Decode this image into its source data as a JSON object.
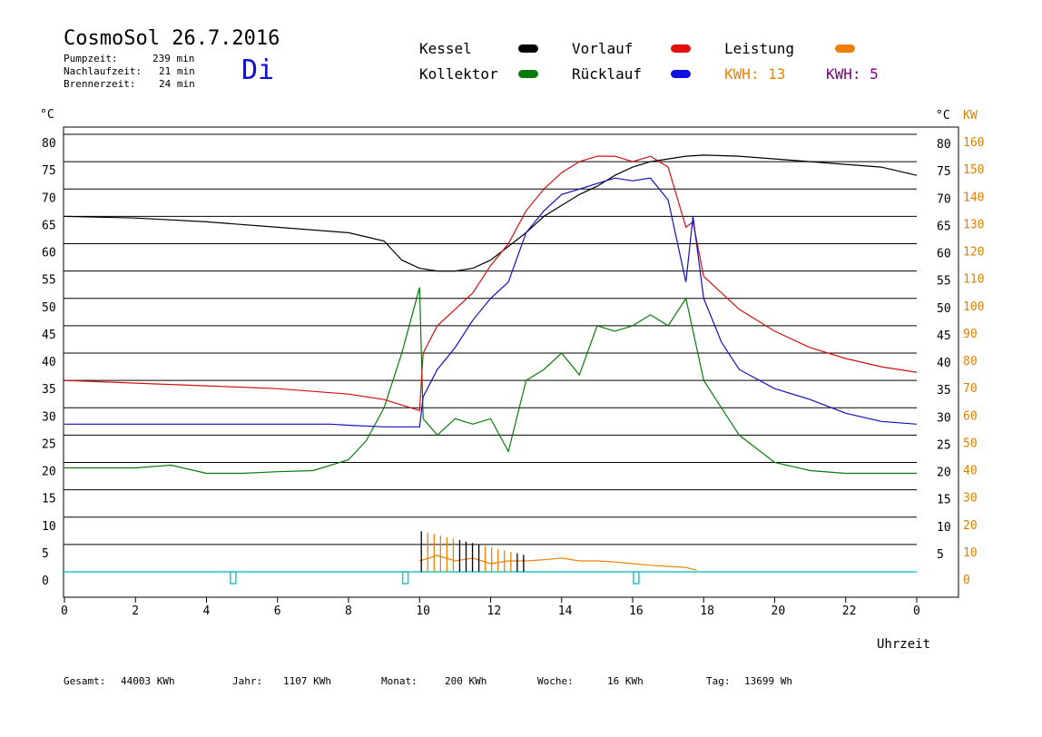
{
  "header": {
    "title": "CosmoSol 26.7.2016",
    "pump_label": "Pumpzeit:",
    "pump_value": "239 min",
    "follow_label": "Nachlaufzeit:",
    "follow_value": "21 min",
    "burner_label": "Brennerzeit:",
    "burner_value": "24 min",
    "weekday": "Di"
  },
  "legend": {
    "kessel": "Kessel",
    "kollektor": "Kollektor",
    "vorlauf": "Vorlauf",
    "ruecklauf": "Rücklauf",
    "leistung": "Leistung",
    "kwh1": "KWH: 13",
    "kwh2": "KWH: 5"
  },
  "colors": {
    "kessel": "#000000",
    "kollektor": "#0a7a0a",
    "vorlauf": "#d01010",
    "ruecklauf": "#1010c0",
    "leistung": "#f08000",
    "kwh2": "#800080",
    "pump": "#20c8c8"
  },
  "footer": {
    "gesamt_label": "Gesamt:",
    "gesamt_value": "44003 KWh",
    "jahr_label": "Jahr:",
    "jahr_value": "1107 KWh",
    "monat_label": "Monat:",
    "monat_value": "200 KWh",
    "woche_label": "Woche:",
    "woche_value": "16 KWh",
    "tag_label": "Tag:",
    "tag_value": "13699 Wh"
  },
  "chart_data": {
    "type": "line",
    "xlabel": "Uhrzeit",
    "ylabel_left": "°C",
    "ylabel_right_temp": "°C",
    "ylabel_right_power": "KW",
    "xlim": [
      0,
      24
    ],
    "ylim": [
      -5,
      80
    ],
    "y2lim": [
      -10,
      160
    ],
    "x_ticks": [
      "0",
      "2",
      "4",
      "6",
      "8",
      "10",
      "12",
      "14",
      "16",
      "18",
      "20",
      "22",
      "0"
    ],
    "y_ticks_left": [
      "80",
      "75",
      "70",
      "65",
      "60",
      "55",
      "50",
      "45",
      "40",
      "35",
      "30",
      "25",
      "20",
      "15",
      "10",
      "5",
      "0"
    ],
    "y_ticks_right": [
      "80",
      "75",
      "70",
      "65",
      "60",
      "55",
      "50",
      "45",
      "40",
      "35",
      "30",
      "25",
      "20",
      "15",
      "10",
      "5"
    ],
    "y2_ticks": [
      "160",
      "150",
      "140",
      "130",
      "120",
      "110",
      "100",
      "90",
      "80",
      "70",
      "60",
      "50",
      "40",
      "30",
      "20",
      "10",
      "0"
    ],
    "grid": true,
    "series": [
      {
        "name": "Kessel",
        "color": "#000000",
        "x": [
          0,
          2,
          4,
          6,
          8,
          9,
          9.5,
          10,
          10.5,
          11,
          11.5,
          12,
          12.5,
          13,
          13.5,
          14,
          14.5,
          15,
          15.5,
          16,
          16.5,
          17,
          17.5,
          18,
          19,
          20,
          21,
          22,
          23,
          24
        ],
        "y": [
          65,
          64.7,
          64,
          63,
          62,
          60.5,
          57,
          55.5,
          55,
          55,
          55.5,
          57,
          59.5,
          62,
          65,
          67,
          69,
          70.5,
          72.5,
          74,
          75,
          75.5,
          76,
          76.2,
          76,
          75.5,
          75,
          74.5,
          74,
          72.5
        ]
      },
      {
        "name": "Kollektor",
        "color": "#0a7a0a",
        "x": [
          0,
          2,
          3,
          4,
          5,
          6,
          7,
          8,
          8.5,
          9,
          9.5,
          10,
          10.1,
          10.5,
          11,
          11.5,
          12,
          12.5,
          13,
          13.5,
          14,
          14.5,
          15,
          15.5,
          16,
          16.5,
          17,
          17.5,
          18,
          18.5,
          19,
          20,
          21,
          22,
          23,
          24
        ],
        "y": [
          19,
          19,
          19.5,
          18,
          18,
          18.3,
          18.5,
          20.5,
          24,
          30,
          40,
          52,
          28,
          25,
          28,
          27,
          28,
          22,
          35,
          37,
          40,
          36,
          45,
          44,
          45,
          47,
          45,
          50,
          35,
          30,
          25,
          20,
          18.5,
          18,
          18,
          18
        ]
      },
      {
        "name": "Vorlauf",
        "color": "#d01010",
        "x": [
          0,
          2,
          4,
          6,
          8,
          9,
          10,
          10.1,
          10.5,
          11,
          11.5,
          12,
          12.5,
          13,
          13.5,
          14,
          14.5,
          15,
          15.5,
          16,
          16.5,
          17,
          17.5,
          17.7,
          18,
          19,
          20,
          21,
          22,
          23,
          24
        ],
        "y": [
          35,
          34.5,
          34,
          33.5,
          32.5,
          31.5,
          29.5,
          40,
          45,
          48,
          51,
          56,
          60,
          66,
          70,
          73,
          75,
          76,
          76,
          75,
          76,
          74,
          63,
          64,
          54,
          48,
          44,
          41,
          39,
          37.5,
          36.5
        ]
      },
      {
        "name": "Rücklauf",
        "color": "#1010c0",
        "x": [
          0,
          2,
          4,
          6,
          7.5,
          8,
          9,
          10,
          10.1,
          10.5,
          11,
          11.5,
          12,
          12.5,
          13,
          13.5,
          14,
          14.5,
          15,
          15.5,
          16,
          16.5,
          17,
          17.5,
          17.7,
          18,
          18.5,
          19,
          20,
          21,
          22,
          23,
          24
        ],
        "y": [
          27,
          27,
          27,
          27,
          27,
          26.8,
          26.5,
          26.5,
          32,
          37,
          41,
          46,
          50,
          53,
          62,
          66,
          69,
          70,
          71,
          72,
          71.5,
          72,
          68,
          53,
          65,
          50,
          42,
          37,
          33.5,
          31.5,
          29,
          27.5,
          27
        ]
      },
      {
        "name": "Leistung",
        "color": "#f08000",
        "x": [
          10,
          10.5,
          11,
          11.5,
          12,
          12.5,
          13,
          13.5,
          14,
          14.5,
          15,
          15.5,
          16,
          16.5,
          17,
          17.5,
          17.8
        ],
        "y": [
          2,
          3,
          2,
          2.5,
          1.5,
          2,
          2,
          2.2,
          2.5,
          2,
          2,
          1.8,
          1.5,
          1.2,
          1,
          0.8,
          0.3
        ]
      }
    ],
    "annotations": [
      "KWH: 13",
      "KWH: 5"
    ]
  }
}
